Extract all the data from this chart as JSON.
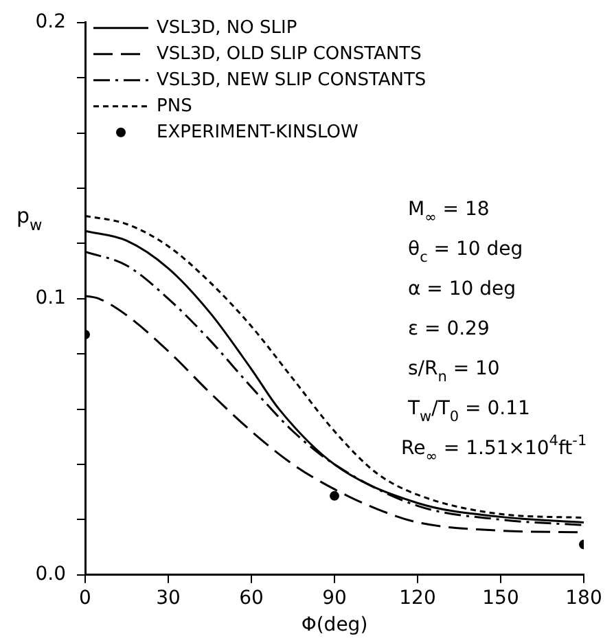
{
  "chart_data": {
    "type": "line",
    "xlabel": "Φ(deg)",
    "ylabel": "p$_{w}$",
    "xlim": [
      0,
      180
    ],
    "xticks": [
      0,
      30,
      60,
      90,
      120,
      150,
      180
    ],
    "ylim": [
      0,
      0.2
    ],
    "yticks": [
      {
        "value": 0,
        "label": "0.0"
      },
      {
        "value": 0.02,
        "label": null
      },
      {
        "value": 0.04,
        "label": null
      },
      {
        "value": 0.06,
        "label": null
      },
      {
        "value": 0.08,
        "label": null
      },
      {
        "value": 0.1,
        "label": "0.1"
      },
      {
        "value": 0.12,
        "label": null
      },
      {
        "value": 0.14,
        "label": null
      },
      {
        "value": 0.16,
        "label": null
      },
      {
        "value": 0.18,
        "label": null
      },
      {
        "value": 0.2,
        "label": "0.2"
      }
    ],
    "grid": false,
    "legend": "top",
    "series": [
      {
        "name": "VSL3D, NO SLIP",
        "color": "#000000",
        "line_style": "solid",
        "marker": "none",
        "x": [
          0,
          15,
          30,
          45,
          60,
          70,
          90,
          120,
          150,
          180
        ],
        "values": [
          0.1245,
          0.121,
          0.111,
          0.095,
          0.0745,
          0.06,
          0.04,
          0.026,
          0.021,
          0.019
        ]
      },
      {
        "name": "VSL3D, OLD SLIP CONSTANTS",
        "color": "#000000",
        "line_style": "dashed",
        "marker": "none",
        "x": [
          0,
          5,
          15,
          30,
          45,
          60,
          75,
          90,
          105,
          120,
          150,
          180
        ],
        "values": [
          0.101,
          0.1,
          0.094,
          0.081,
          0.066,
          0.052,
          0.04,
          0.031,
          0.024,
          0.019,
          0.016,
          0.0154
        ]
      },
      {
        "name": "VSL3D, NEW SLIP CONSTANTS",
        "color": "#000000",
        "line_style": "dashdot",
        "marker": "none",
        "x": [
          0,
          15,
          30,
          45,
          60,
          75,
          90,
          120,
          150,
          180
        ],
        "values": [
          0.117,
          0.112,
          0.1,
          0.085,
          0.068,
          0.052,
          0.04,
          0.025,
          0.02,
          0.018
        ]
      },
      {
        "name": "PNS",
        "color": "#000000",
        "line_style": "dotted",
        "marker": "none",
        "x": [
          0,
          15,
          30,
          45,
          60,
          75,
          90,
          105,
          120,
          150,
          180
        ],
        "values": [
          0.13,
          0.127,
          0.119,
          0.106,
          0.09,
          0.071,
          0.052,
          0.037,
          0.029,
          0.022,
          0.0207
        ]
      },
      {
        "name": "EXPERIMENT-KINSLOW",
        "type": "scatter",
        "color": "#000000",
        "marker": "circle",
        "x": [
          0,
          90,
          180
        ],
        "values": [
          0.087,
          0.0286,
          0.011
        ]
      }
    ],
    "annotations": [
      "M$_{∞}$ = 18",
      "θ$_{c}$ = 10 deg",
      "α = 10 deg",
      "ε = 0.29",
      "s/R$_{n}$ = 10",
      "T$_{w}$/T$_{0}$ = 0.11",
      "Re$_{∞}$ = 1.51×10$^{4}$ft$^{-1}$"
    ]
  }
}
